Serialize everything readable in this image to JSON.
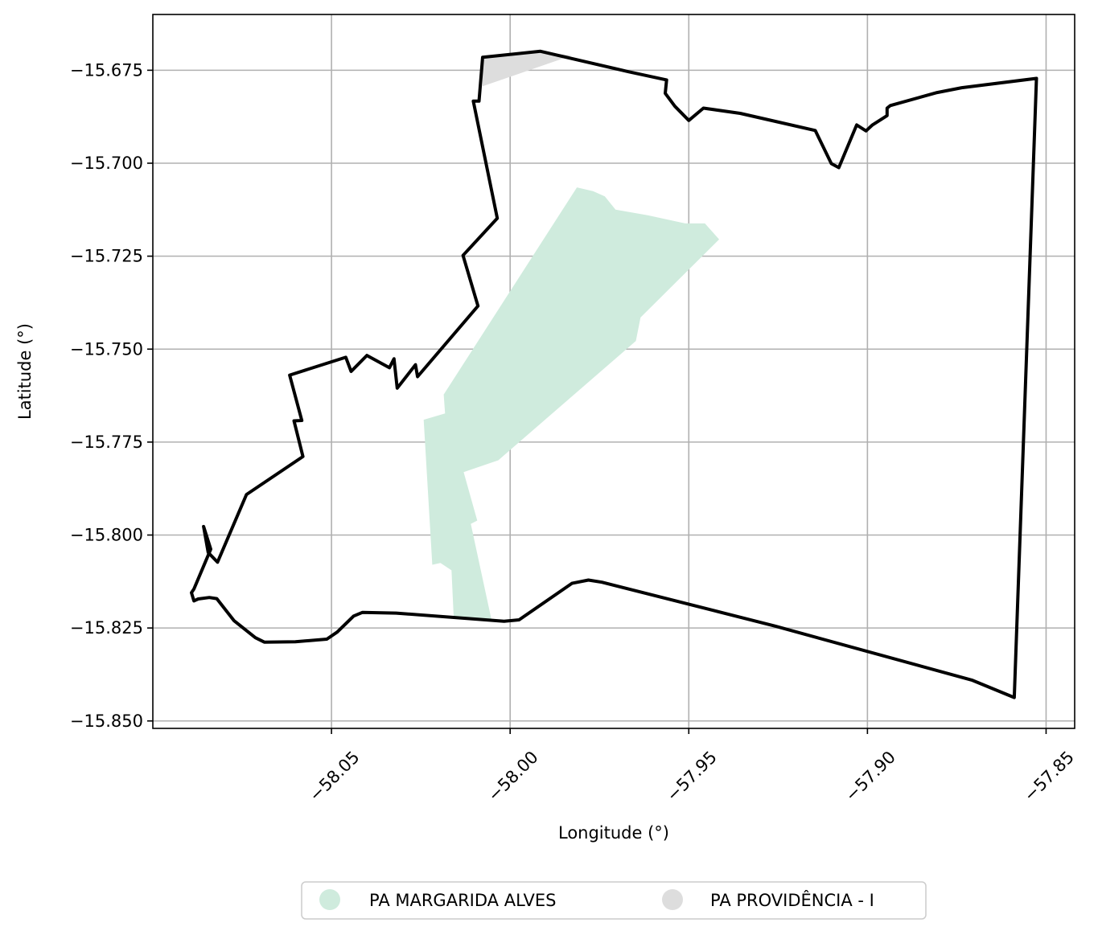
{
  "chart_data": {
    "type": "map",
    "xlabel": "Longitude (°)",
    "ylabel": "Latitude (°)",
    "xlim": [
      -58.1,
      -57.842
    ],
    "ylim": [
      -15.852,
      -15.66
    ],
    "xticks": [
      -58.05,
      -58.0,
      -57.95,
      -57.9,
      -57.85
    ],
    "xtick_labels": [
      "−58.05",
      "−58.00",
      "−57.95",
      "−57.90",
      "−57.85"
    ],
    "yticks": [
      -15.675,
      -15.7,
      -15.725,
      -15.75,
      -15.775,
      -15.8,
      -15.825,
      -15.85
    ],
    "ytick_labels": [
      "−15.675",
      "−15.700",
      "−15.725",
      "−15.750",
      "−15.775",
      "−15.800",
      "−15.825",
      "−15.850"
    ],
    "grid": true,
    "legend_position": "bottom-center",
    "colors": {
      "boundary": "#000000",
      "margarida": "#cfebdd",
      "providencia": "#dddddd",
      "grid": "#b0b0b0"
    },
    "legend": [
      {
        "label": "PA MARGARIDA ALVES",
        "color": "#cfebdd"
      },
      {
        "label": "PA PROVIDÊNCIA - I",
        "color": "#dddddd"
      }
    ],
    "areas": [
      {
        "name": "PA MARGARIDA ALVES",
        "color": "#cfebdd",
        "coords": [
          [
            -57.9813,
            -15.7065
          ],
          [
            -57.9768,
            -15.7075
          ],
          [
            -57.9735,
            -15.7089
          ],
          [
            -57.9705,
            -15.7125
          ],
          [
            -57.9615,
            -15.714
          ],
          [
            -57.951,
            -15.7162
          ],
          [
            -57.9455,
            -15.7162
          ],
          [
            -57.9415,
            -15.7205
          ],
          [
            -57.9635,
            -15.7415
          ],
          [
            -57.9648,
            -15.7478
          ],
          [
            -58.0033,
            -15.7799
          ],
          [
            -58.013,
            -15.7831
          ],
          [
            -58.0092,
            -15.7961
          ],
          [
            -58.011,
            -15.797
          ],
          [
            -58.0052,
            -15.8229
          ],
          [
            -58.0158,
            -15.822
          ],
          [
            -58.0164,
            -15.8095
          ],
          [
            -58.0195,
            -15.8075
          ],
          [
            -58.0218,
            -15.808
          ],
          [
            -58.0242,
            -15.769
          ],
          [
            -58.0182,
            -15.7673
          ],
          [
            -58.0186,
            -15.7622
          ],
          [
            -57.9813,
            -15.7065
          ]
        ]
      },
      {
        "name": "PA PROVIDÊNCIA - I",
        "color": "#dddddd",
        "coords": [
          [
            -58.0077,
            -15.6715
          ],
          [
            -57.9932,
            -15.6699
          ],
          [
            -57.9827,
            -15.671
          ],
          [
            -58.0077,
            -15.6793
          ],
          [
            -58.0077,
            -15.6715
          ]
        ]
      }
    ],
    "boundary": {
      "name": "boundary",
      "color": "#000000",
      "coords": [
        [
          -57.8527,
          -15.6772
        ],
        [
          -57.8736,
          -15.6797
        ],
        [
          -57.8805,
          -15.681
        ],
        [
          -57.8936,
          -15.6845
        ],
        [
          -57.8945,
          -15.6852
        ],
        [
          -57.8945,
          -15.6872
        ],
        [
          -57.8986,
          -15.6897
        ],
        [
          -57.9004,
          -15.6913
        ],
        [
          -57.903,
          -15.6897
        ],
        [
          -57.908,
          -15.7012
        ],
        [
          -57.9101,
          -15.7001
        ],
        [
          -57.9146,
          -15.6912
        ],
        [
          -57.9287,
          -15.6881
        ],
        [
          -57.9356,
          -15.6866
        ],
        [
          -57.9459,
          -15.6852
        ],
        [
          -57.95,
          -15.6885
        ],
        [
          -57.9539,
          -15.6847
        ],
        [
          -57.9566,
          -15.6812
        ],
        [
          -57.9562,
          -15.6776
        ],
        [
          -57.9669,
          -15.6754
        ],
        [
          -57.9915,
          -15.6699
        ],
        [
          -58.0077,
          -15.6715
        ],
        [
          -58.0087,
          -15.6833
        ],
        [
          -58.0103,
          -15.6833
        ],
        [
          -58.0036,
          -15.7148
        ],
        [
          -58.0132,
          -15.7248
        ],
        [
          -58.009,
          -15.7384
        ],
        [
          -58.0259,
          -15.7574
        ],
        [
          -58.0265,
          -15.7542
        ],
        [
          -58.0316,
          -15.7605
        ],
        [
          -58.0325,
          -15.7526
        ],
        [
          -58.0338,
          -15.755
        ],
        [
          -58.0401,
          -15.7517
        ],
        [
          -58.0445,
          -15.756
        ],
        [
          -58.046,
          -15.7522
        ],
        [
          -58.0617,
          -15.757
        ],
        [
          -58.0583,
          -15.7692
        ],
        [
          -58.0605,
          -15.7693
        ],
        [
          -58.058,
          -15.7789
        ],
        [
          -58.0738,
          -15.7891
        ],
        [
          -58.0819,
          -15.8073
        ],
        [
          -58.0845,
          -15.8047
        ],
        [
          -58.0858,
          -15.7977
        ],
        [
          -58.0838,
          -15.8038
        ],
        [
          -58.0885,
          -15.8145
        ],
        [
          -58.0892,
          -15.8155
        ],
        [
          -58.0885,
          -15.8177
        ],
        [
          -58.0873,
          -15.8172
        ],
        [
          -58.0842,
          -15.8168
        ],
        [
          -58.0821,
          -15.8171
        ],
        [
          -58.0773,
          -15.823
        ],
        [
          -58.0713,
          -15.8276
        ],
        [
          -58.0688,
          -15.8288
        ],
        [
          -58.0601,
          -15.8287
        ],
        [
          -58.0513,
          -15.828
        ],
        [
          -58.0484,
          -15.8261
        ],
        [
          -58.0438,
          -15.8218
        ],
        [
          -58.0413,
          -15.8208
        ],
        [
          -58.0319,
          -15.821
        ],
        [
          -58.0017,
          -15.8232
        ],
        [
          -57.9975,
          -15.8228
        ],
        [
          -57.9827,
          -15.813
        ],
        [
          -57.9781,
          -15.8121
        ],
        [
          -57.9743,
          -15.8127
        ],
        [
          -57.9258,
          -15.8245
        ],
        [
          -57.8708,
          -15.839
        ],
        [
          -57.8589,
          -15.8437
        ],
        [
          -57.8527,
          -15.6772
        ]
      ]
    }
  }
}
